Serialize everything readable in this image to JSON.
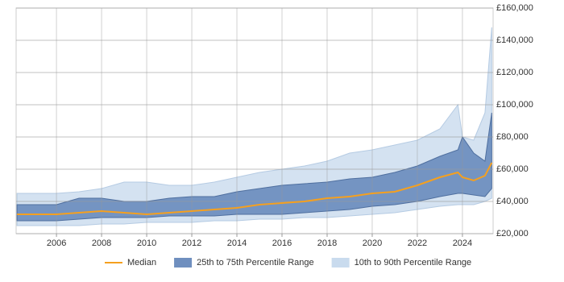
{
  "chart_data": {
    "type": "line",
    "x": [
      2004.25,
      2005,
      2006,
      2007,
      2008,
      2009,
      2010,
      2011,
      2012,
      2013,
      2014,
      2015,
      2016,
      2017,
      2018,
      2019,
      2020,
      2021,
      2022,
      2023,
      2023.8,
      2024,
      2024.5,
      2025,
      2025.3
    ],
    "bands": [
      {
        "name": "10th to 90th Percentile Range",
        "color": "#c9dbee",
        "lower": [
          25000,
          25000,
          25000,
          25000,
          26000,
          26000,
          27000,
          27000,
          27000,
          28000,
          28000,
          29000,
          29000,
          30000,
          30000,
          31000,
          32000,
          33000,
          35000,
          37000,
          38000,
          38000,
          38000,
          40000,
          42000
        ],
        "upper": [
          45000,
          45000,
          45000,
          46000,
          48000,
          52000,
          52000,
          50000,
          50000,
          52000,
          55000,
          58000,
          60000,
          62000,
          65000,
          70000,
          72000,
          75000,
          78000,
          85000,
          100000,
          80000,
          78000,
          95000,
          148000
        ]
      },
      {
        "name": "25th to 75th Percentile Range",
        "color": "#6f8fbf",
        "lower": [
          28000,
          28000,
          28000,
          29000,
          30000,
          30000,
          30000,
          31000,
          31000,
          31000,
          32000,
          32000,
          32000,
          33000,
          34000,
          35000,
          37000,
          38000,
          40000,
          43000,
          45000,
          45000,
          44000,
          43000,
          48000
        ],
        "upper": [
          38000,
          38000,
          38000,
          42000,
          42000,
          40000,
          40000,
          42000,
          43000,
          43000,
          46000,
          48000,
          50000,
          51000,
          52000,
          54000,
          55000,
          58000,
          62000,
          68000,
          72000,
          80000,
          70000,
          65000,
          95000
        ]
      }
    ],
    "series": [
      {
        "name": "Median",
        "color": "#f5a01f",
        "values": [
          32000,
          32000,
          32000,
          33000,
          34000,
          33000,
          32000,
          33000,
          34000,
          35000,
          36000,
          38000,
          39000,
          40000,
          42000,
          43000,
          45000,
          46000,
          50000,
          55000,
          58000,
          55000,
          53000,
          56000,
          64000
        ]
      }
    ],
    "xlim": [
      2004.21,
      2025.36
    ],
    "xticks": [
      2006,
      2008,
      2010,
      2012,
      2014,
      2016,
      2018,
      2020,
      2022,
      2024
    ],
    "ylim": [
      20000,
      160000
    ],
    "yticks": [
      {
        "value": 20000,
        "label": "£20,000"
      },
      {
        "value": 40000,
        "label": "£40,000"
      },
      {
        "value": 60000,
        "label": "£60,000"
      },
      {
        "value": 80000,
        "label": "£80,000"
      },
      {
        "value": 100000,
        "label": "£100,000"
      },
      {
        "value": 120000,
        "label": "£120,000"
      },
      {
        "value": 140000,
        "label": "£140,000"
      },
      {
        "value": 160000,
        "label": "£160,000"
      }
    ],
    "grid": true
  }
}
